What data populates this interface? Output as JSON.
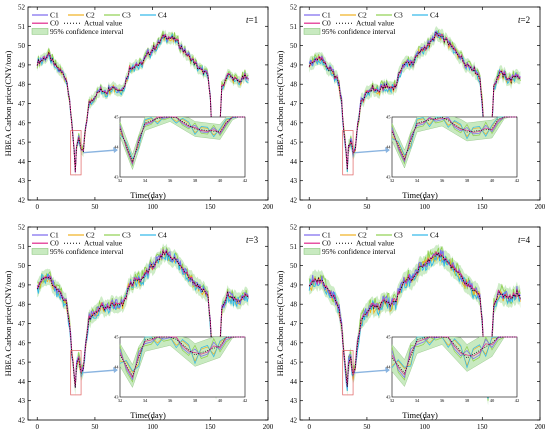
{
  "chart_data": [
    {
      "type": "line",
      "tag": "t=1",
      "tag_var": "t",
      "tag_val": "=1",
      "xlabel": "Time(day)",
      "ylabel": "HBEA Carbon price(CNY/ton)",
      "xlim": [
        -8,
        200
      ],
      "ylim": [
        42,
        52
      ],
      "x_ticks": [
        0,
        50,
        100,
        150,
        200
      ],
      "y_ticks": [
        42,
        43,
        44,
        45,
        46,
        47,
        48,
        49,
        50,
        51,
        52
      ],
      "legend": [
        {
          "name": "C1",
          "color": "#7b68ee",
          "style": "solid"
        },
        {
          "name": "C2",
          "color": "#f0b020",
          "style": "solid"
        },
        {
          "name": "C3",
          "color": "#90d050",
          "style": "solid"
        },
        {
          "name": "C4",
          "color": "#30b8e8",
          "style": "solid"
        },
        {
          "name": "C0",
          "color": "#e0288c",
          "style": "solid"
        },
        {
          "name": "Actual value",
          "color": "#000000",
          "style": "dotted"
        },
        {
          "name": "95% confidence interval",
          "color": "#c8eac0",
          "style": "band"
        }
      ],
      "actual": [
        [
          0,
          49.1
        ],
        [
          5,
          49.3
        ],
        [
          10,
          49.5
        ],
        [
          15,
          49.0
        ],
        [
          20,
          48.7
        ],
        [
          25,
          48.3
        ],
        [
          28,
          47.3
        ],
        [
          30,
          45.8
        ],
        [
          32,
          44.6
        ],
        [
          33,
          43.5
        ],
        [
          34,
          44.8
        ],
        [
          36,
          45.1
        ],
        [
          38,
          44.6
        ],
        [
          40,
          44.5
        ],
        [
          42,
          45.8
        ],
        [
          45,
          47.0
        ],
        [
          50,
          47.4
        ],
        [
          55,
          47.7
        ],
        [
          60,
          47.6
        ],
        [
          65,
          47.9
        ],
        [
          70,
          47.7
        ],
        [
          75,
          47.8
        ],
        [
          80,
          48.8
        ],
        [
          85,
          49.0
        ],
        [
          90,
          49.0
        ],
        [
          95,
          49.5
        ],
        [
          100,
          49.8
        ],
        [
          105,
          50.1
        ],
        [
          110,
          50.5
        ],
        [
          115,
          50.4
        ],
        [
          120,
          50.3
        ],
        [
          125,
          49.9
        ],
        [
          130,
          49.5
        ],
        [
          135,
          49.2
        ],
        [
          140,
          48.8
        ],
        [
          145,
          48.6
        ],
        [
          148,
          48.4
        ],
        [
          150,
          47.2
        ],
        [
          152,
          45.0
        ],
        [
          155,
          43.5
        ],
        [
          158,
          45.6
        ],
        [
          160,
          47.8
        ],
        [
          165,
          48.5
        ],
        [
          170,
          48.3
        ],
        [
          175,
          48.1
        ],
        [
          180,
          48.4
        ],
        [
          183,
          48.2
        ]
      ],
      "series_offsets": {
        "C1": 0.12,
        "C2": -0.12,
        "C3": 0.2,
        "C4": -0.18,
        "C0": 0.05
      },
      "ci_halfwidth": 0.25,
      "inset": {
        "xlim": [
          32,
          42
        ],
        "ylim": [
          43,
          45
        ],
        "x_ticks": [
          32,
          34,
          36,
          38,
          40,
          42
        ],
        "y_ticks": [
          43,
          44,
          45
        ]
      }
    },
    {
      "type": "line",
      "tag": "t=2",
      "tag_var": "t",
      "tag_val": "=2",
      "xlabel": "Time(day)",
      "ylabel": "HBEA Carbon price(CNY/ton)",
      "xlim": [
        -8,
        200
      ],
      "ylim": [
        42,
        52
      ],
      "x_ticks": [
        0,
        50,
        100,
        150,
        200
      ],
      "y_ticks": [
        42,
        43,
        44,
        45,
        46,
        47,
        48,
        49,
        50,
        51,
        52
      ],
      "legend": [
        {
          "name": "C1",
          "color": "#7b68ee",
          "style": "solid"
        },
        {
          "name": "C2",
          "color": "#f0b020",
          "style": "solid"
        },
        {
          "name": "C3",
          "color": "#90d050",
          "style": "solid"
        },
        {
          "name": "C4",
          "color": "#30b8e8",
          "style": "solid"
        },
        {
          "name": "C0",
          "color": "#e0288c",
          "style": "solid"
        },
        {
          "name": "Actual value",
          "color": "#000000",
          "style": "dotted"
        },
        {
          "name": "95% confidence interval",
          "color": "#c8eac0",
          "style": "band"
        }
      ],
      "actual": [
        [
          0,
          49.0
        ],
        [
          5,
          49.2
        ],
        [
          10,
          49.4
        ],
        [
          15,
          48.9
        ],
        [
          20,
          48.6
        ],
        [
          25,
          48.2
        ],
        [
          28,
          47.1
        ],
        [
          30,
          45.6
        ],
        [
          32,
          44.5
        ],
        [
          33,
          43.6
        ],
        [
          34,
          44.8
        ],
        [
          36,
          45.0
        ],
        [
          38,
          44.5
        ],
        [
          40,
          44.6
        ],
        [
          42,
          45.9
        ],
        [
          45,
          47.1
        ],
        [
          50,
          47.5
        ],
        [
          55,
          47.8
        ],
        [
          60,
          47.6
        ],
        [
          65,
          47.9
        ],
        [
          70,
          47.8
        ],
        [
          75,
          47.9
        ],
        [
          80,
          48.9
        ],
        [
          85,
          49.1
        ],
        [
          90,
          49.1
        ],
        [
          95,
          49.6
        ],
        [
          100,
          49.9
        ],
        [
          105,
          50.1
        ],
        [
          110,
          50.6
        ],
        [
          115,
          50.4
        ],
        [
          120,
          50.2
        ],
        [
          125,
          49.8
        ],
        [
          130,
          49.5
        ],
        [
          135,
          49.1
        ],
        [
          140,
          48.9
        ],
        [
          145,
          48.6
        ],
        [
          148,
          48.3
        ],
        [
          150,
          47.0
        ],
        [
          152,
          44.8
        ],
        [
          155,
          43.4
        ],
        [
          158,
          45.7
        ],
        [
          160,
          47.9
        ],
        [
          165,
          48.6
        ],
        [
          170,
          48.4
        ],
        [
          175,
          48.2
        ],
        [
          180,
          48.5
        ],
        [
          183,
          48.3
        ]
      ],
      "series_offsets": {
        "C1": 0.15,
        "C2": -0.15,
        "C3": 0.25,
        "C4": -0.22,
        "C0": 0.06
      },
      "ci_halfwidth": 0.3,
      "inset": {
        "xlim": [
          32,
          42
        ],
        "ylim": [
          43,
          45
        ],
        "x_ticks": [
          32,
          34,
          36,
          38,
          40,
          42
        ],
        "y_ticks": [
          43,
          44,
          45
        ]
      }
    },
    {
      "type": "line",
      "tag": "t=3",
      "tag_var": "t",
      "tag_val": "=3",
      "xlabel": "Time(day)",
      "ylabel": "HBEA Carbon price(CNY/ton)",
      "xlim": [
        -8,
        200
      ],
      "ylim": [
        42,
        52
      ],
      "x_ticks": [
        0,
        50,
        100,
        150,
        200
      ],
      "y_ticks": [
        42,
        43,
        44,
        45,
        46,
        47,
        48,
        49,
        50,
        51,
        52
      ],
      "legend": [
        {
          "name": "C1",
          "color": "#7b68ee",
          "style": "solid"
        },
        {
          "name": "C2",
          "color": "#f0b020",
          "style": "solid"
        },
        {
          "name": "C3",
          "color": "#90d050",
          "style": "solid"
        },
        {
          "name": "C4",
          "color": "#30b8e8",
          "style": "solid"
        },
        {
          "name": "C0",
          "color": "#e0288c",
          "style": "solid"
        },
        {
          "name": "Actual value",
          "color": "#000000",
          "style": "dotted"
        },
        {
          "name": "95% confidence interval",
          "color": "#c8eac0",
          "style": "band"
        }
      ],
      "actual": [
        [
          0,
          48.9
        ],
        [
          5,
          49.3
        ],
        [
          10,
          49.4
        ],
        [
          15,
          48.8
        ],
        [
          20,
          48.6
        ],
        [
          25,
          48.1
        ],
        [
          28,
          47.0
        ],
        [
          30,
          45.5
        ],
        [
          32,
          44.4
        ],
        [
          33,
          43.7
        ],
        [
          34,
          44.9
        ],
        [
          36,
          45.1
        ],
        [
          38,
          44.4
        ],
        [
          40,
          44.7
        ],
        [
          42,
          46.0
        ],
        [
          45,
          47.2
        ],
        [
          50,
          47.5
        ],
        [
          55,
          47.9
        ],
        [
          60,
          47.7
        ],
        [
          65,
          48.0
        ],
        [
          70,
          47.9
        ],
        [
          75,
          48.0
        ],
        [
          80,
          49.0
        ],
        [
          85,
          49.2
        ],
        [
          90,
          49.2
        ],
        [
          95,
          49.7
        ],
        [
          100,
          50.0
        ],
        [
          105,
          50.2
        ],
        [
          110,
          50.7
        ],
        [
          115,
          50.5
        ],
        [
          120,
          50.3
        ],
        [
          125,
          49.9
        ],
        [
          130,
          49.6
        ],
        [
          135,
          49.2
        ],
        [
          140,
          48.9
        ],
        [
          145,
          48.7
        ],
        [
          148,
          48.4
        ],
        [
          150,
          47.1
        ],
        [
          152,
          44.9
        ],
        [
          155,
          43.3
        ],
        [
          158,
          45.5
        ],
        [
          160,
          47.7
        ],
        [
          165,
          48.5
        ],
        [
          170,
          48.3
        ],
        [
          175,
          48.1
        ],
        [
          180,
          48.5
        ],
        [
          183,
          48.2
        ]
      ],
      "series_offsets": {
        "C1": 0.2,
        "C2": -0.2,
        "C3": 0.32,
        "C4": -0.28,
        "C0": 0.08
      },
      "ci_halfwidth": 0.38,
      "inset": {
        "xlim": [
          32,
          42
        ],
        "ylim": [
          43,
          45
        ],
        "x_ticks": [
          32,
          34,
          36,
          38,
          40,
          42
        ],
        "y_ticks": [
          43,
          44,
          45
        ]
      }
    },
    {
      "type": "line",
      "tag": "t=4",
      "tag_var": "t",
      "tag_val": "=4",
      "xlabel": "Time(day)",
      "ylabel": "HBEA Carbon price(CNY/ton)",
      "xlim": [
        -8,
        200
      ],
      "ylim": [
        42,
        52
      ],
      "x_ticks": [
        0,
        50,
        100,
        150,
        200
      ],
      "y_ticks": [
        42,
        43,
        44,
        45,
        46,
        47,
        48,
        49,
        50,
        51,
        52
      ],
      "legend": [
        {
          "name": "C1",
          "color": "#7b68ee",
          "style": "solid"
        },
        {
          "name": "C2",
          "color": "#f0b020",
          "style": "solid"
        },
        {
          "name": "C3",
          "color": "#90d050",
          "style": "solid"
        },
        {
          "name": "C4",
          "color": "#30b8e8",
          "style": "solid"
        },
        {
          "name": "C0",
          "color": "#e0288c",
          "style": "solid"
        },
        {
          "name": "Actual value",
          "color": "#000000",
          "style": "dotted"
        },
        {
          "name": "95% confidence interval",
          "color": "#c8eac0",
          "style": "band"
        }
      ],
      "actual": [
        [
          0,
          49.0
        ],
        [
          5,
          49.2
        ],
        [
          10,
          49.3
        ],
        [
          15,
          48.9
        ],
        [
          20,
          48.5
        ],
        [
          25,
          48.0
        ],
        [
          28,
          46.9
        ],
        [
          30,
          45.4
        ],
        [
          32,
          44.3
        ],
        [
          33,
          43.8
        ],
        [
          34,
          44.9
        ],
        [
          36,
          45.2
        ],
        [
          38,
          44.3
        ],
        [
          40,
          44.8
        ],
        [
          42,
          46.1
        ],
        [
          45,
          47.2
        ],
        [
          50,
          47.6
        ],
        [
          55,
          47.9
        ],
        [
          60,
          47.8
        ],
        [
          65,
          48.1
        ],
        [
          70,
          48.0
        ],
        [
          75,
          48.1
        ],
        [
          80,
          49.0
        ],
        [
          85,
          49.3
        ],
        [
          90,
          49.3
        ],
        [
          95,
          49.8
        ],
        [
          100,
          50.1
        ],
        [
          105,
          50.3
        ],
        [
          110,
          50.6
        ],
        [
          115,
          50.5
        ],
        [
          120,
          50.2
        ],
        [
          125,
          49.8
        ],
        [
          130,
          49.5
        ],
        [
          135,
          49.1
        ],
        [
          140,
          48.8
        ],
        [
          145,
          48.6
        ],
        [
          148,
          48.3
        ],
        [
          150,
          46.9
        ],
        [
          152,
          44.7
        ],
        [
          155,
          43.2
        ],
        [
          158,
          45.8
        ],
        [
          160,
          48.0
        ],
        [
          165,
          48.6
        ],
        [
          170,
          48.4
        ],
        [
          175,
          48.3
        ],
        [
          180,
          48.6
        ],
        [
          183,
          48.4
        ]
      ],
      "series_offsets": {
        "C1": 0.25,
        "C2": -0.25,
        "C3": 0.38,
        "C4": -0.32,
        "C0": 0.1
      },
      "ci_halfwidth": 0.45,
      "inset": {
        "xlim": [
          32,
          42
        ],
        "ylim": [
          43,
          45
        ],
        "x_ticks": [
          32,
          34,
          36,
          38,
          40,
          42
        ],
        "y_ticks": [
          43,
          44,
          45
        ]
      }
    }
  ]
}
